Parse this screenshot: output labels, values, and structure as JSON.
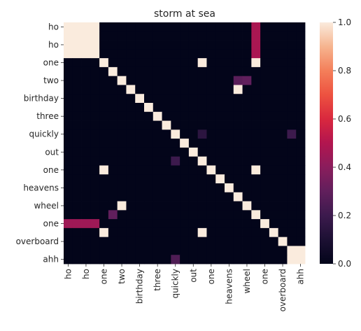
{
  "chart_data": {
    "type": "heatmap",
    "title": "storm at sea",
    "xlabel": "",
    "ylabel": "",
    "row_labels": [
      "ho",
      "ho",
      "ho",
      "ho",
      "one",
      "two",
      "two",
      "birthday",
      "birthday",
      "three",
      "three",
      "quickly",
      "quickly",
      "out",
      "out",
      "one",
      "one",
      "heavens",
      "heavens",
      "wheel",
      "wheel",
      "one",
      "one",
      "overboard",
      "overboard",
      "ahh",
      "ahh"
    ],
    "col_labels": [
      "ho",
      "ho",
      "ho",
      "ho",
      "one",
      "two",
      "two",
      "birthday",
      "birthday",
      "three",
      "three",
      "quickly",
      "quickly",
      "out",
      "out",
      "one",
      "one",
      "heavens",
      "heavens",
      "wheel",
      "wheel",
      "one",
      "one",
      "overboard",
      "overboard",
      "ahh",
      "ahh"
    ],
    "row_tick_labels": [
      "ho",
      "ho",
      "one",
      "two",
      "birthday",
      "three",
      "quickly",
      "out",
      "one",
      "heavens",
      "wheel",
      "one",
      "overboard",
      "ahh"
    ],
    "col_tick_labels": [
      "ho",
      "ho",
      "one",
      "two",
      "birthday",
      "three",
      "quickly",
      "out",
      "one",
      "heavens",
      "wheel",
      "one",
      "overboard",
      "ahh"
    ],
    "tick_every": 2,
    "colorbar": {
      "vmin": 0.0,
      "vmax": 1.0,
      "ticks": [
        "0.0",
        "0.2",
        "0.4",
        "0.6",
        "0.8",
        "1.0"
      ],
      "colormap": "rocket",
      "placement": "right"
    },
    "grid": false,
    "values": [
      [
        1,
        1,
        1,
        1,
        0,
        0,
        0,
        0,
        0,
        0,
        0,
        0,
        0,
        0,
        0,
        0,
        0,
        0,
        0,
        0,
        0,
        0,
        0,
        0,
        0,
        0,
        0
      ],
      [
        1,
        1,
        1,
        1,
        0,
        0,
        0,
        0,
        0,
        0,
        0,
        0,
        0,
        0,
        0,
        0,
        0,
        0,
        0,
        0,
        0,
        0,
        0,
        0,
        0,
        0,
        0
      ],
      [
        1,
        1,
        1,
        1,
        0,
        0,
        0,
        0,
        0,
        0,
        0,
        0,
        0,
        0,
        0,
        0,
        0,
        0,
        0,
        0,
        0,
        0,
        0,
        0,
        0,
        0,
        0
      ],
      [
        1,
        1,
        1,
        1,
        0,
        0,
        0,
        0,
        0,
        0,
        0,
        0,
        0,
        0,
        0,
        0,
        0,
        0,
        0,
        0,
        0,
        0,
        0,
        0,
        0,
        0,
        0
      ],
      [
        0,
        0,
        0,
        0,
        1,
        0,
        0,
        0,
        0,
        0,
        0,
        0,
        0,
        0,
        0,
        1,
        0,
        0,
        0,
        0,
        0,
        1,
        0,
        0,
        0,
        0,
        0
      ],
      [
        0,
        0,
        0,
        0,
        0,
        1,
        0,
        0,
        0,
        0,
        0,
        0,
        0,
        0,
        0,
        0,
        0,
        0,
        0,
        0,
        0,
        0,
        0,
        0,
        0,
        0,
        0
      ],
      [
        0,
        0,
        0,
        0,
        0,
        0,
        1,
        0,
        0,
        0,
        0,
        0,
        0,
        0,
        0,
        0,
        0,
        0,
        0,
        0,
        0.3,
        0,
        0,
        0,
        0,
        0,
        0
      ],
      [
        0,
        0,
        0,
        0,
        0,
        0,
        0,
        1,
        0,
        0,
        0,
        0,
        0,
        0,
        0,
        0,
        0,
        0,
        0,
        0,
        0,
        0,
        0,
        0,
        0,
        0,
        0
      ],
      [
        0,
        0,
        0,
        0,
        0,
        0,
        0,
        0,
        1,
        0,
        0,
        0,
        0,
        0,
        0,
        0,
        0,
        0,
        0,
        0,
        0,
        0,
        0,
        0,
        0,
        0,
        0
      ],
      [
        0,
        0,
        0,
        0,
        0,
        0,
        0,
        0,
        0,
        1,
        0,
        0,
        0,
        0,
        0,
        0,
        0,
        0,
        0,
        0,
        0,
        0,
        0,
        0,
        0,
        0,
        0
      ],
      [
        0,
        0,
        0,
        0,
        0,
        0,
        0,
        0,
        0,
        0,
        1,
        0,
        0,
        0,
        0,
        0,
        0,
        0,
        0,
        0,
        0,
        0,
        0,
        0,
        0,
        0,
        0
      ],
      [
        0,
        0,
        0,
        0,
        0,
        0,
        0,
        0,
        0,
        0,
        0,
        1,
        0,
        0,
        0,
        0,
        0,
        0,
        0,
        0,
        0,
        0,
        0,
        0,
        0,
        0,
        0
      ],
      [
        0,
        0,
        0,
        0,
        0,
        0,
        0,
        0,
        0,
        0,
        0,
        0,
        1,
        0,
        0,
        0,
        0,
        0,
        0,
        0,
        0,
        0,
        0,
        0,
        0,
        0,
        0
      ],
      [
        0,
        0,
        0,
        0,
        0,
        0,
        0,
        0,
        0,
        0,
        0,
        0,
        0,
        1,
        0,
        0,
        0,
        0,
        0,
        0,
        0,
        0,
        0,
        0,
        0,
        0,
        0
      ],
      [
        0,
        0,
        0,
        0,
        0,
        0,
        0,
        0,
        0,
        0,
        0,
        0,
        0,
        0,
        1,
        0,
        0,
        0,
        0,
        0,
        0,
        0,
        0,
        0,
        0,
        0,
        0
      ],
      [
        0,
        0,
        0,
        0,
        0,
        0,
        0,
        0,
        0,
        0,
        0,
        0,
        0,
        0,
        0,
        1,
        0,
        0,
        0,
        0,
        0,
        0,
        0,
        0,
        0,
        0,
        0
      ],
      [
        0,
        0,
        0,
        0,
        1,
        0,
        0,
        0,
        0,
        0,
        0,
        0,
        0,
        0,
        0,
        0,
        1,
        0,
        0,
        0,
        0,
        1,
        0,
        0,
        0,
        0,
        0
      ],
      [
        0,
        0,
        0,
        0,
        0,
        0,
        0,
        0,
        0,
        0,
        0,
        0,
        0,
        0,
        0,
        0,
        0,
        1,
        0,
        0,
        0,
        0,
        0,
        0,
        0,
        0,
        0
      ],
      [
        0,
        0,
        0,
        0,
        0,
        0,
        0,
        0,
        0,
        0,
        0,
        0,
        0,
        0,
        0,
        0,
        0,
        0,
        1,
        0,
        0,
        0,
        0,
        0,
        0,
        0,
        0
      ],
      [
        0,
        0,
        0,
        0,
        0,
        0,
        0,
        0,
        0,
        0,
        0,
        0,
        0,
        0,
        0,
        0,
        0,
        0,
        0,
        1,
        0,
        0,
        0,
        0,
        0,
        0,
        0
      ],
      [
        0,
        0,
        0,
        0,
        0,
        0,
        0,
        0,
        0,
        0,
        0,
        0,
        0,
        0,
        0,
        0,
        0,
        0,
        0,
        0,
        1,
        0,
        0,
        0,
        0,
        0,
        0
      ],
      [
        0,
        0,
        0,
        0,
        0,
        0,
        0,
        0,
        0,
        0,
        0,
        0,
        0,
        0,
        0,
        0,
        0,
        0,
        0,
        0,
        0,
        1,
        0,
        0,
        0,
        0,
        0
      ],
      [
        0,
        0,
        0,
        0,
        0,
        0,
        0,
        0,
        0,
        0,
        0,
        0,
        0,
        0,
        0,
        0,
        0,
        0,
        0,
        0,
        0,
        0,
        1,
        0,
        0,
        0,
        0
      ],
      [
        0,
        0,
        0,
        0,
        0,
        0,
        0,
        0,
        0,
        0,
        0,
        0,
        0,
        0,
        0,
        0,
        0,
        0,
        0,
        0,
        0,
        0,
        0,
        1,
        0,
        0,
        0
      ],
      [
        0,
        0,
        0,
        0,
        0,
        0,
        0,
        0,
        0,
        0,
        0,
        0,
        0,
        0,
        0,
        0,
        0,
        0,
        0,
        0,
        0,
        0,
        0,
        0,
        1,
        0,
        0
      ],
      [
        0,
        0,
        0,
        0,
        0,
        0,
        0,
        0,
        0,
        0,
        0,
        0,
        0,
        0,
        0,
        0,
        0,
        0,
        0,
        0,
        0,
        0,
        0,
        0,
        0,
        1,
        1
      ],
      [
        0,
        0,
        0,
        0,
        0,
        0,
        0,
        0,
        0,
        0,
        0,
        0,
        0,
        0,
        0,
        0,
        0,
        0,
        0,
        0,
        0,
        0,
        0,
        0,
        0,
        1,
        1
      ]
    ],
    "cell_overrides": [
      {
        "r": 0,
        "c": 21,
        "v": 0.48
      },
      {
        "r": 1,
        "c": 21,
        "v": 0.48
      },
      {
        "r": 2,
        "c": 21,
        "v": 0.48
      },
      {
        "r": 3,
        "c": 21,
        "v": 0.48
      },
      {
        "r": 4,
        "c": 15,
        "v": 1
      },
      {
        "r": 4,
        "c": 21,
        "v": 1
      },
      {
        "r": 6,
        "c": 19,
        "v": 0.28
      },
      {
        "r": 7,
        "c": 19,
        "v": 1
      },
      {
        "r": 12,
        "c": 15,
        "v": 0.15
      },
      {
        "r": 12,
        "c": 25,
        "v": 0.2
      },
      {
        "r": 15,
        "c": 12,
        "v": 0.2
      },
      {
        "r": 16,
        "c": 4,
        "v": 1
      },
      {
        "r": 16,
        "c": 21,
        "v": 1
      },
      {
        "r": 20,
        "c": 6,
        "v": 1
      },
      {
        "r": 21,
        "c": 5,
        "v": 0.3
      },
      {
        "r": 22,
        "c": 0,
        "v": 0.45
      },
      {
        "r": 22,
        "c": 1,
        "v": 0.45
      },
      {
        "r": 22,
        "c": 2,
        "v": 0.45
      },
      {
        "r": 22,
        "c": 3,
        "v": 0.45
      },
      {
        "r": 23,
        "c": 4,
        "v": 1
      },
      {
        "r": 23,
        "c": 15,
        "v": 1
      },
      {
        "r": 26,
        "c": 12,
        "v": 0.25
      }
    ]
  }
}
